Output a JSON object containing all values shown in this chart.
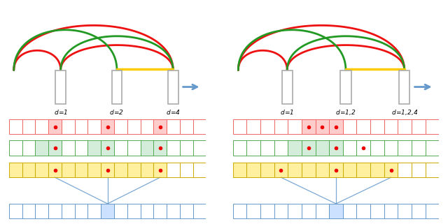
{
  "fig_width": 6.4,
  "fig_height": 3.21,
  "dpi": 100,
  "bg_color": "#ffffff",
  "red": "#ee1111",
  "green": "#229922",
  "yellow": "#ffcc00",
  "blue_arrow": "#6699cc",
  "light_red": "#ffcccc",
  "light_green": "#d4edda",
  "light_yellow": "#fff0a0",
  "light_blue": "#cce0ff",
  "border_red": "#ee6666",
  "border_green": "#55aa55",
  "border_yellow": "#ccaa00",
  "border_blue": "#6699cc",
  "dot_color": "#ee0000",
  "col_gray": "#aaaaaa"
}
